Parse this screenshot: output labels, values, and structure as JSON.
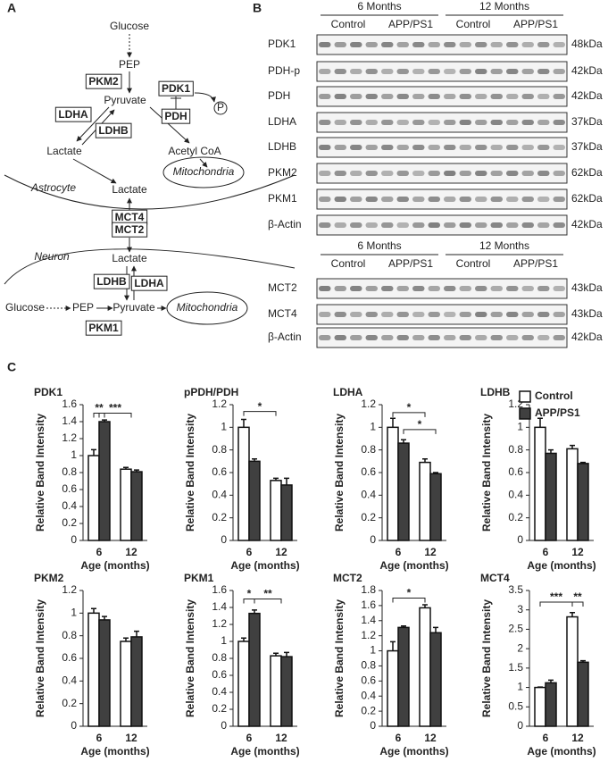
{
  "panel_a": {
    "label": "A",
    "labels": [
      "Glucose",
      "PEP",
      "PKM2",
      "Pyruvate",
      "PDK1",
      "P",
      "PDH",
      "LDHA",
      "LDHB",
      "Lactate",
      "Acetyl CoA",
      "Mitochondria",
      "Astrocyte",
      "Lactate",
      "MCT4",
      "MCT2",
      "Neuron",
      "Lactate",
      "LDHB",
      "LDHA",
      "Glucose",
      "PEP",
      "Pyruvate",
      "Mitochondria",
      "PKM1"
    ]
  },
  "panel_b": {
    "label": "B",
    "blot_top": {
      "groups": [
        "6 Months",
        "12 Months"
      ],
      "subgroups": [
        "Control",
        "APP/PS1",
        "Control",
        "APP/PS1"
      ],
      "rows": [
        {
          "name": "PDK1",
          "size": "48kDa"
        },
        {
          "name": "PDH-p",
          "size": "42kDa"
        },
        {
          "name": "PDH",
          "size": "42kDa"
        },
        {
          "name": "LDHA",
          "size": "37kDa"
        },
        {
          "name": "LDHB",
          "size": "37kDa"
        },
        {
          "name": "PKM2",
          "size": "62kDa"
        },
        {
          "name": "PKM1",
          "size": "62kDa"
        },
        {
          "name": "β-Actin",
          "size": "42kDa"
        }
      ]
    },
    "blot_bottom": {
      "groups": [
        "6 Months",
        "12 Months"
      ],
      "subgroups": [
        "Control",
        "APP/PS1",
        "Control",
        "APP/PS1"
      ],
      "rows": [
        {
          "name": "MCT2",
          "size": "43kDa"
        },
        {
          "name": "MCT4",
          "size": "43kDa"
        },
        {
          "name": "β-Actin",
          "size": "42kDa"
        }
      ]
    }
  },
  "panel_c": {
    "label": "C"
  },
  "chart_data": [
    {
      "type": "bar",
      "title": "PDK1",
      "ylabel": "Relative Band Intensity",
      "xlabel": "Age (months)",
      "categories": [
        "6",
        "12"
      ],
      "ylim": [
        0,
        1.6
      ],
      "yticks": [
        0,
        0.2,
        0.4,
        0.6,
        0.8,
        1,
        1.2,
        1.4,
        1.6
      ],
      "series": [
        {
          "color": "#ffffff",
          "values": [
            1.0,
            0.84
          ],
          "errors": [
            0.07,
            0.02
          ]
        },
        {
          "color": "#404040",
          "values": [
            1.4,
            0.81
          ],
          "errors": [
            0.02,
            0.02
          ]
        }
      ],
      "annotations": [
        "**",
        "***"
      ]
    },
    {
      "type": "bar",
      "title": "pPDH/PDH",
      "ylabel": "Relative Band Intensity",
      "xlabel": "Age (months)",
      "categories": [
        "6",
        "12"
      ],
      "ylim": [
        0,
        1.2
      ],
      "yticks": [
        0,
        0.2,
        0.4,
        0.6,
        0.8,
        1,
        1.2
      ],
      "series": [
        {
          "color": "#ffffff",
          "values": [
            1.0,
            0.53
          ],
          "errors": [
            0.07,
            0.02
          ]
        },
        {
          "color": "#404040",
          "values": [
            0.7,
            0.49
          ],
          "errors": [
            0.02,
            0.06
          ]
        }
      ],
      "annotations": [
        "*"
      ]
    },
    {
      "type": "bar",
      "title": "LDHA",
      "ylabel": "Relative Band Intensity",
      "xlabel": "Age (months)",
      "categories": [
        "6",
        "12"
      ],
      "ylim": [
        0,
        1.2
      ],
      "yticks": [
        0,
        0.2,
        0.4,
        0.6,
        0.8,
        1,
        1.2
      ],
      "series": [
        {
          "color": "#ffffff",
          "values": [
            1.0,
            0.69
          ],
          "errors": [
            0.08,
            0.03
          ]
        },
        {
          "color": "#404040",
          "values": [
            0.86,
            0.59
          ],
          "errors": [
            0.03,
            0.01
          ]
        }
      ],
      "annotations": [
        "*",
        "*"
      ]
    },
    {
      "type": "bar",
      "title": "LDHB",
      "ylabel": "Relative Band Intensity",
      "xlabel": "Age (months)",
      "categories": [
        "6",
        "12"
      ],
      "ylim": [
        0,
        1.2
      ],
      "yticks": [
        0,
        0.2,
        0.4,
        0.6,
        0.8,
        1,
        1.2
      ],
      "legend": "upper right",
      "series": [
        {
          "name": "Control",
          "color": "#ffffff",
          "values": [
            1.0,
            0.81
          ],
          "errors": [
            0.08,
            0.03
          ]
        },
        {
          "name": "APP/PS1",
          "color": "#404040",
          "values": [
            0.77,
            0.68
          ],
          "errors": [
            0.03,
            0.01
          ]
        }
      ]
    },
    {
      "type": "bar",
      "title": "PKM2",
      "ylabel": "Relative Band Intensity",
      "xlabel": "Age (months)",
      "categories": [
        "6",
        "12"
      ],
      "ylim": [
        0,
        1.2
      ],
      "yticks": [
        0,
        0.2,
        0.4,
        0.6,
        0.8,
        1,
        1.2
      ],
      "series": [
        {
          "color": "#ffffff",
          "values": [
            1.0,
            0.75
          ],
          "errors": [
            0.04,
            0.03
          ]
        },
        {
          "color": "#404040",
          "values": [
            0.94,
            0.79
          ],
          "errors": [
            0.03,
            0.05
          ]
        }
      ]
    },
    {
      "type": "bar",
      "title": "PKM1",
      "ylabel": "Relative Band Intensity",
      "xlabel": "Age (months)",
      "categories": [
        "6",
        "12"
      ],
      "ylim": [
        0,
        1.6
      ],
      "yticks": [
        0,
        0.2,
        0.4,
        0.6,
        0.8,
        1,
        1.2,
        1.4,
        1.6
      ],
      "series": [
        {
          "color": "#ffffff",
          "values": [
            1.0,
            0.83
          ],
          "errors": [
            0.04,
            0.03
          ]
        },
        {
          "color": "#404040",
          "values": [
            1.33,
            0.82
          ],
          "errors": [
            0.04,
            0.05
          ]
        }
      ],
      "annotations": [
        "*",
        "**"
      ]
    },
    {
      "type": "bar",
      "title": "MCT2",
      "ylabel": "Relative Band Intensity",
      "xlabel": "Age (months)",
      "categories": [
        "6",
        "12"
      ],
      "ylim": [
        0,
        1.8
      ],
      "yticks": [
        0,
        0.2,
        0.4,
        0.6,
        0.8,
        1,
        1.2,
        1.4,
        1.6,
        1.8
      ],
      "series": [
        {
          "color": "#ffffff",
          "values": [
            1.0,
            1.57
          ],
          "errors": [
            0.12,
            0.04
          ]
        },
        {
          "color": "#404040",
          "values": [
            1.31,
            1.24
          ],
          "errors": [
            0.02,
            0.07
          ]
        }
      ],
      "annotations": [
        "*"
      ]
    },
    {
      "type": "bar",
      "title": "MCT4",
      "ylabel": "Relative Band Intensity",
      "xlabel": "Age (months)",
      "categories": [
        "6",
        "12"
      ],
      "ylim": [
        0,
        3.5
      ],
      "yticks": [
        0,
        0.5,
        1,
        1.5,
        2,
        2.5,
        3,
        3.5
      ],
      "series": [
        {
          "color": "#ffffff",
          "values": [
            1.0,
            2.82
          ],
          "errors": [
            0.01,
            0.11
          ]
        },
        {
          "color": "#404040",
          "values": [
            1.12,
            1.65
          ],
          "errors": [
            0.07,
            0.04
          ]
        }
      ],
      "annotations": [
        "***",
        "**"
      ]
    }
  ]
}
